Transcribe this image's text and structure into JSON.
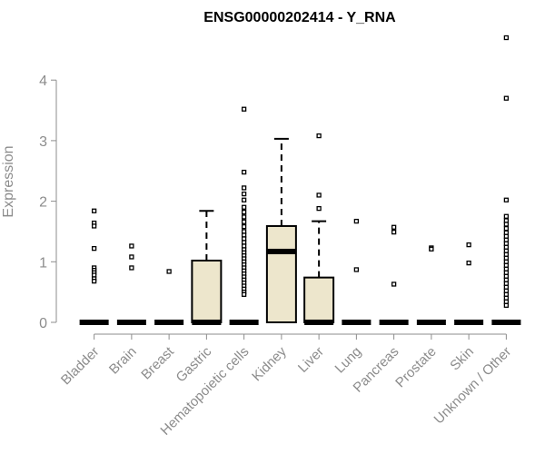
{
  "chart_data": {
    "type": "box",
    "title": "ENSG00000202414 - Y_RNA",
    "ylabel": "Expression",
    "xlabel": "",
    "ylim": [
      0,
      4.6
    ],
    "yticks": [
      0,
      1,
      2,
      3,
      4
    ],
    "grid": false,
    "box_fill": "#ede6cc",
    "categories": [
      "Bladder",
      "Brain",
      "Breast",
      "Gastric",
      "Hematopoietic cells",
      "Kidney",
      "Liver",
      "Lung",
      "Pancreas",
      "Prostate",
      "Skin",
      "Unknown / Other"
    ],
    "series": [
      {
        "category": "Bladder",
        "q1": 0,
        "median": 0,
        "q3": 0,
        "whisker_low": 0,
        "whisker_high": 0,
        "outliers": [
          1.84,
          1.64,
          1.59,
          1.22,
          0.9,
          0.86,
          0.82,
          0.78,
          0.72,
          0.68
        ]
      },
      {
        "category": "Brain",
        "q1": 0,
        "median": 0,
        "q3": 0,
        "whisker_low": 0,
        "whisker_high": 0,
        "outliers": [
          1.26,
          1.08,
          0.9
        ]
      },
      {
        "category": "Breast",
        "q1": 0,
        "median": 0,
        "q3": 0,
        "whisker_low": 0,
        "whisker_high": 0,
        "outliers": [
          0.84
        ]
      },
      {
        "category": "Gastric",
        "q1": 0,
        "median": 0,
        "q3": 1.02,
        "whisker_low": 0,
        "whisker_high": 1.84,
        "outliers": []
      },
      {
        "category": "Hematopoietic cells",
        "q1": 0,
        "median": 0,
        "q3": 0,
        "whisker_low": 0,
        "whisker_high": 0,
        "outliers": [
          3.52,
          2.48,
          2.22,
          2.12,
          2.02,
          1.9,
          1.82,
          1.74,
          1.66,
          1.58,
          1.5,
          1.44,
          1.38,
          1.32,
          1.26,
          1.2,
          1.15,
          1.1,
          1.05,
          1.0,
          0.95,
          0.9,
          0.85,
          0.8,
          0.75,
          0.7,
          0.65,
          0.6,
          0.55,
          0.5,
          0.46
        ]
      },
      {
        "category": "Kidney",
        "q1": 0,
        "median": 1.17,
        "q3": 1.59,
        "whisker_low": 0,
        "whisker_high": 3.03,
        "outliers": []
      },
      {
        "category": "Liver",
        "q1": 0,
        "median": 0,
        "q3": 0.74,
        "whisker_low": 0,
        "whisker_high": 1.67,
        "outliers": [
          3.08,
          2.1,
          1.88
        ]
      },
      {
        "category": "Lung",
        "q1": 0,
        "median": 0,
        "q3": 0,
        "whisker_low": 0,
        "whisker_high": 0,
        "outliers": [
          1.67,
          0.87
        ]
      },
      {
        "category": "Pancreas",
        "q1": 0,
        "median": 0,
        "q3": 0,
        "whisker_low": 0,
        "whisker_high": 0,
        "outliers": [
          1.57,
          1.49,
          0.63
        ]
      },
      {
        "category": "Prostate",
        "q1": 0,
        "median": 0,
        "q3": 0,
        "whisker_low": 0,
        "whisker_high": 0,
        "outliers": [
          1.23,
          1.21
        ]
      },
      {
        "category": "Skin",
        "q1": 0,
        "median": 0,
        "q3": 0,
        "whisker_low": 0,
        "whisker_high": 0,
        "outliers": [
          1.28,
          0.98
        ]
      },
      {
        "category": "Unknown / Other",
        "q1": 0,
        "median": 0,
        "q3": 0,
        "whisker_low": 0,
        "whisker_high": 0,
        "outliers": [
          4.7,
          3.7,
          2.02,
          1.75,
          1.68,
          1.62,
          1.55,
          1.48,
          1.42,
          1.36,
          1.3,
          1.24,
          1.18,
          1.12,
          1.06,
          1.0,
          0.94,
          0.88,
          0.82,
          0.76,
          0.7,
          0.64,
          0.58,
          0.52,
          0.46,
          0.4,
          0.34,
          0.28
        ]
      }
    ]
  }
}
